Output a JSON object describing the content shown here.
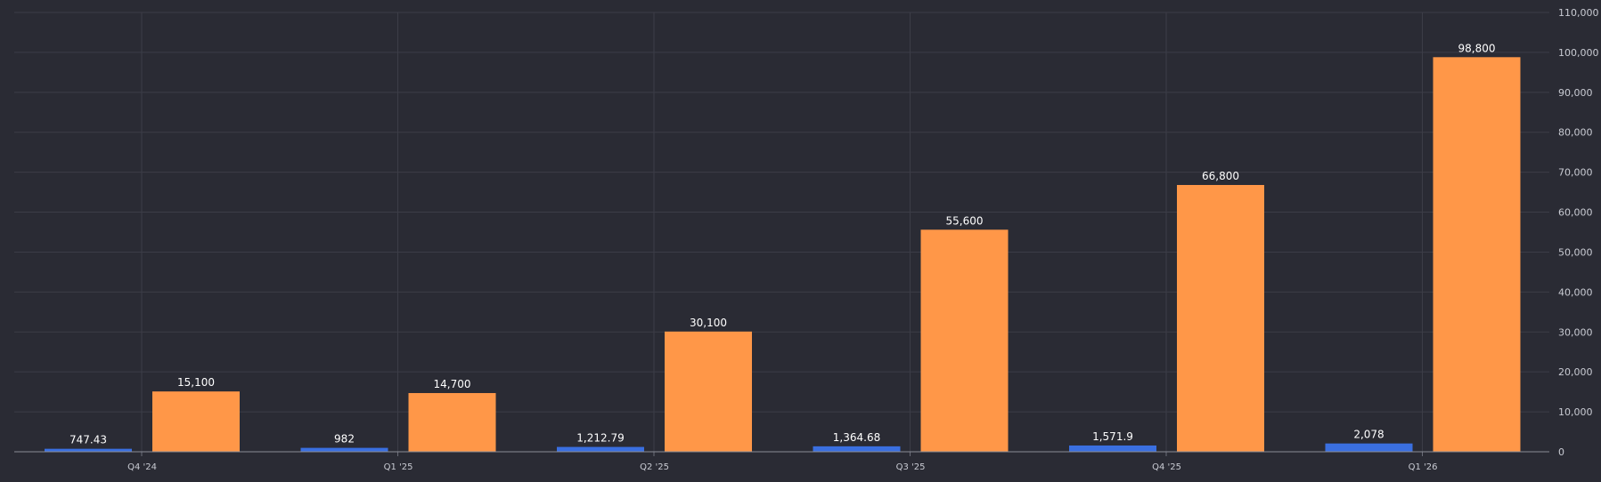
{
  "chart_data": {
    "type": "bar",
    "categories": [
      "Q4 '24",
      "Q1 '25",
      "Q2 '25",
      "Q3 '25",
      "Q4 '25",
      "Q1 '26"
    ],
    "series": [
      {
        "values": [
          747.43,
          982,
          1212.79,
          1364.68,
          1571.9,
          2078
        ],
        "labels": [
          "747.43",
          "982",
          "1,212.79",
          "1,364.68",
          "1,571.9",
          "2,078"
        ],
        "color": "#3a6fe0"
      },
      {
        "values": [
          15100,
          14700,
          30100,
          55600,
          66800,
          98800
        ],
        "labels": [
          "15,100",
          "14,700",
          "30,100",
          "55,600",
          "66,800",
          "98,800"
        ],
        "color": "#ff9748"
      }
    ],
    "ylim": [
      0,
      110000
    ],
    "yticks": [
      0,
      10000,
      20000,
      30000,
      40000,
      50000,
      60000,
      70000,
      80000,
      90000,
      100000,
      110000
    ],
    "ytick_labels": [
      "0",
      "10,000",
      "20,000",
      "30,000",
      "40,000",
      "50,000",
      "60,000",
      "70,000",
      "80,000",
      "90,000",
      "100,000",
      "110,000"
    ],
    "yaxis_position": "right",
    "grid": true,
    "background": "#2a2b34",
    "grid_color": "#3c3d47"
  }
}
